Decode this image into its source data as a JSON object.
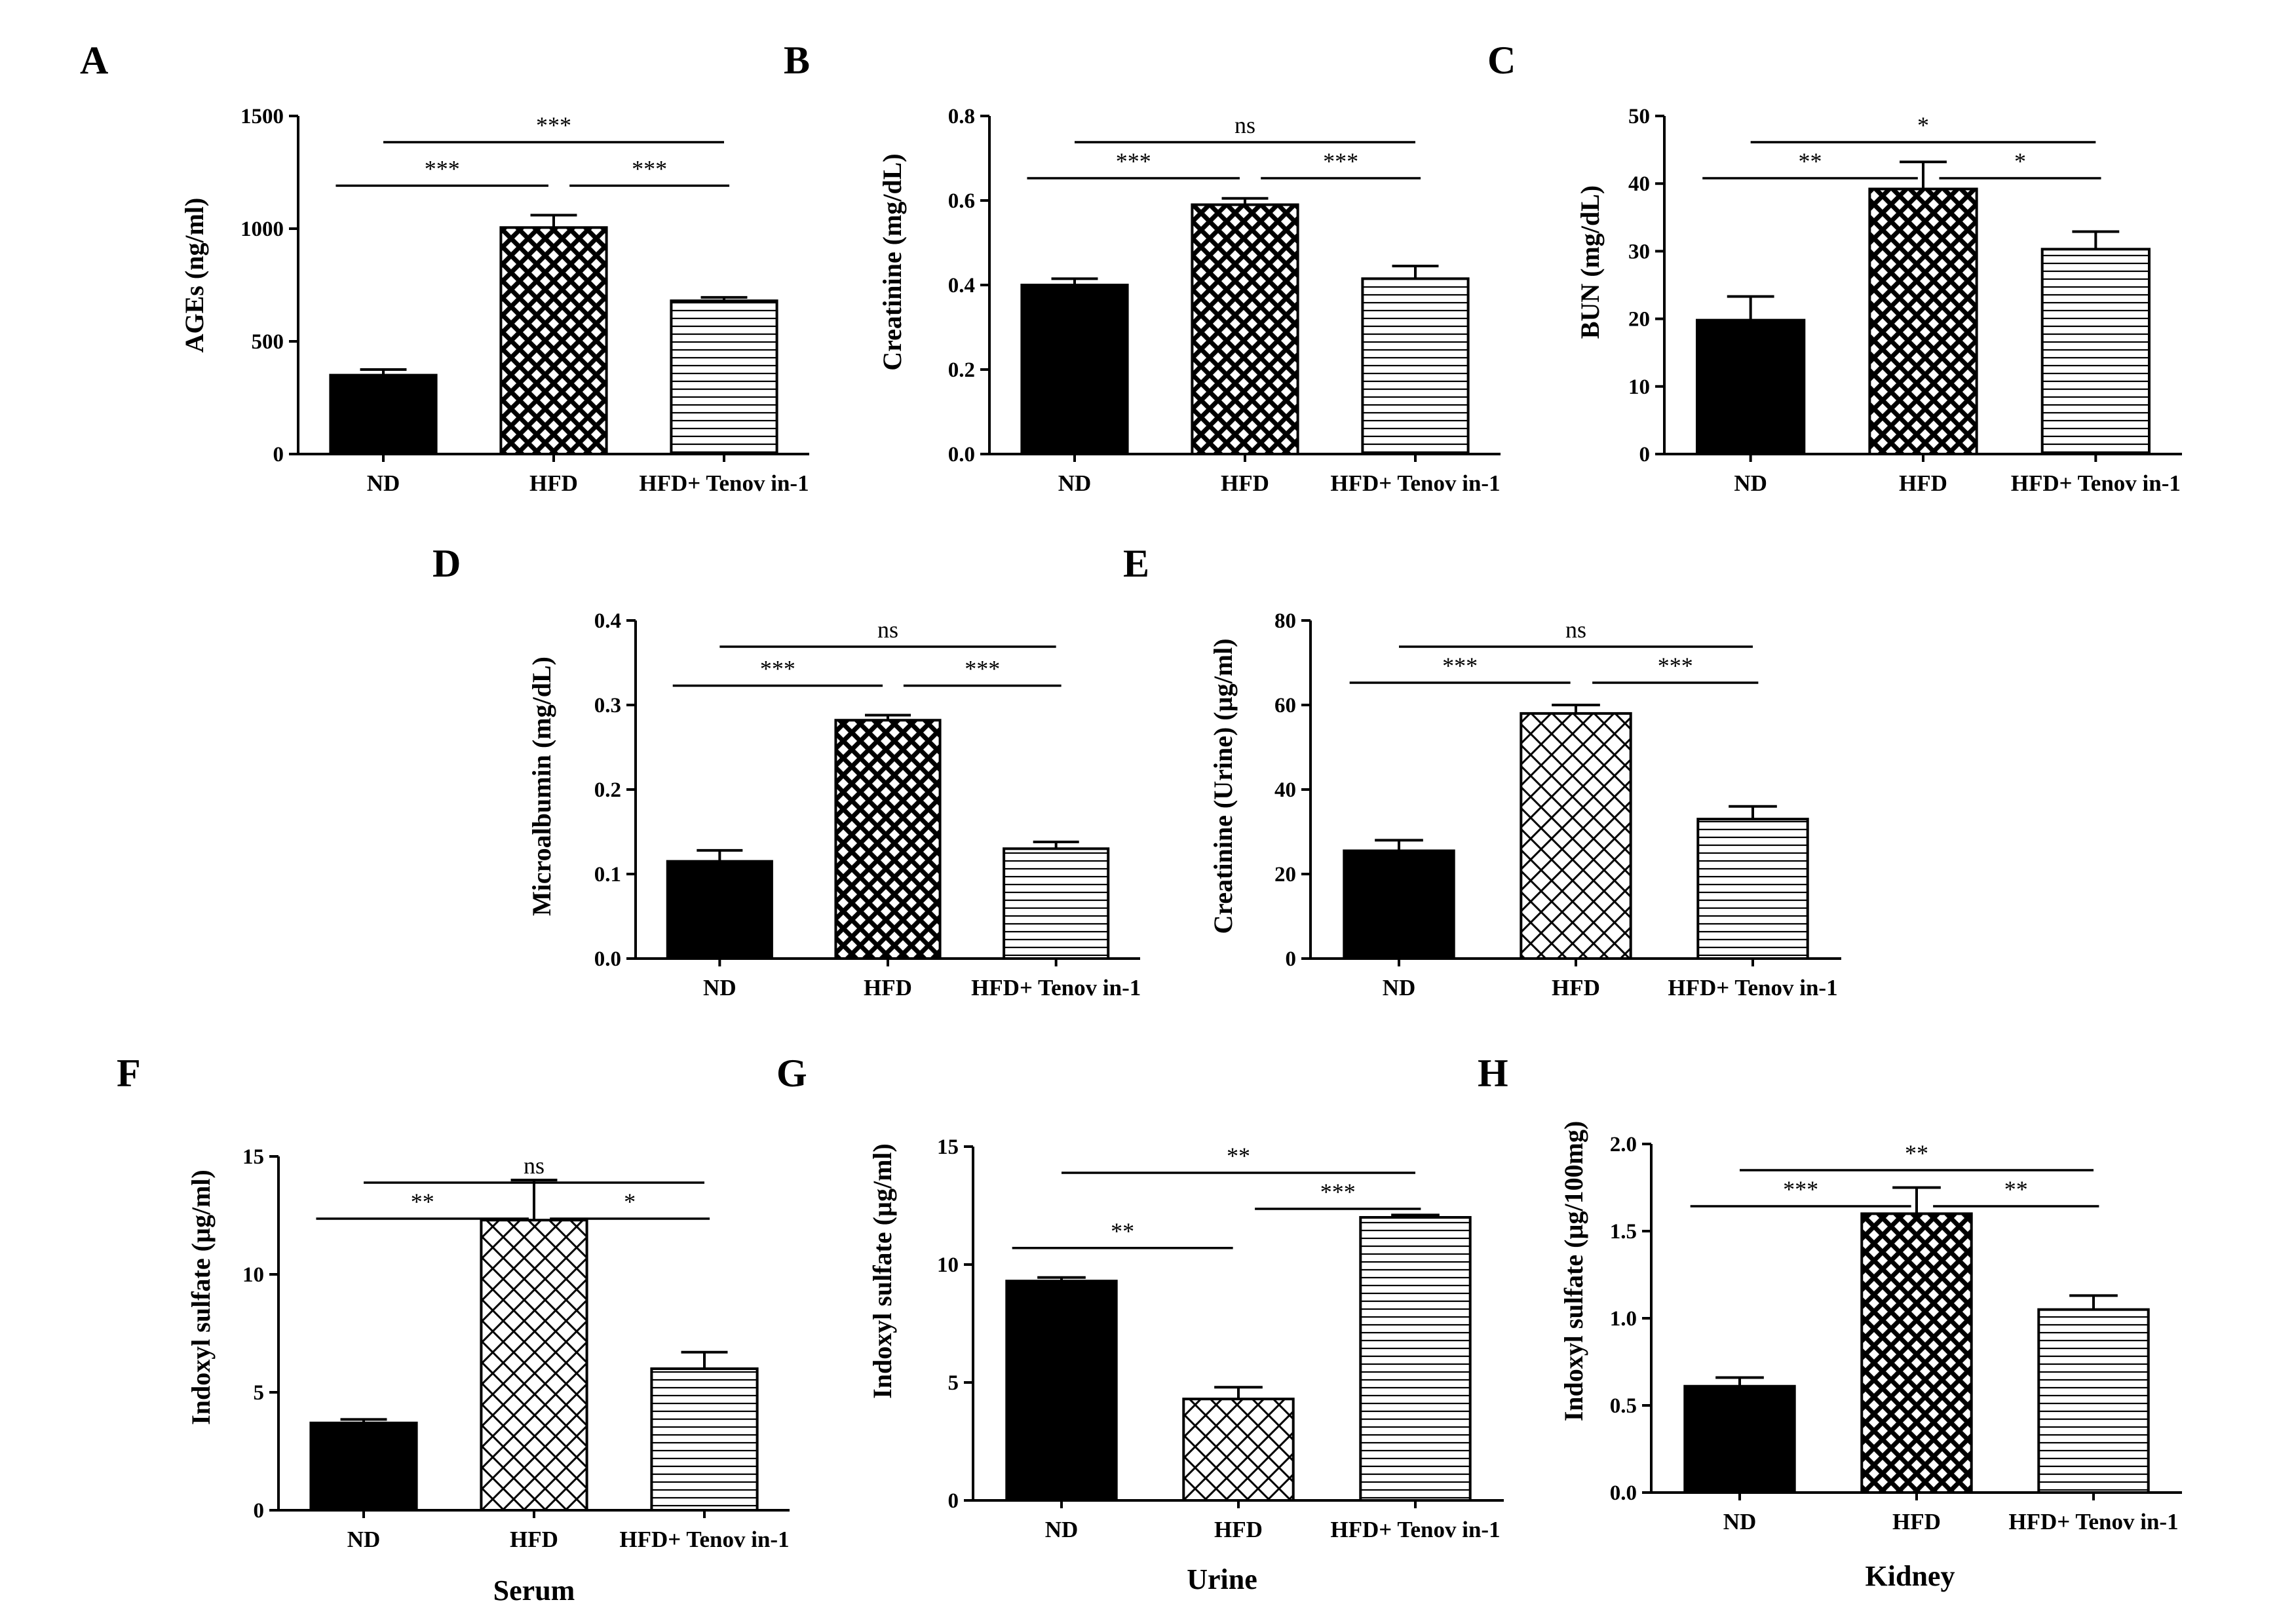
{
  "figure": {
    "description_shown": false
  },
  "chart_data": [
    {
      "panel": "A",
      "type": "bar",
      "categories": [
        "ND",
        "HFD",
        "HFD+ Tenov in-1"
      ],
      "values": [
        350,
        1005,
        680
      ],
      "errors": [
        25,
        55,
        15
      ],
      "ylabel": "AGEs (ng/ml)",
      "xlabel": "",
      "ylim": [
        0,
        1500
      ],
      "ticks": [
        0,
        500,
        1000,
        1500
      ],
      "tick_labels": [
        "0",
        "500",
        "1000",
        "1500"
      ],
      "comparisons": [
        {
          "from": 0,
          "to": 1,
          "label": "***"
        },
        {
          "from": 1,
          "to": 2,
          "label": "***"
        },
        {
          "from": 0,
          "to": 2,
          "label": "***"
        }
      ]
    },
    {
      "panel": "B",
      "type": "bar",
      "categories": [
        "ND",
        "HFD",
        "HFD+ Tenov in-1"
      ],
      "values": [
        0.4,
        0.59,
        0.415
      ],
      "errors": [
        0.015,
        0.015,
        0.03
      ],
      "ylabel": "Creatinine (mg/dL)",
      "xlabel": "",
      "ylim": [
        0,
        0.8
      ],
      "ticks": [
        0,
        0.2,
        0.4,
        0.6,
        0.8
      ],
      "tick_labels": [
        "0.0",
        "0.2",
        "0.4",
        "0.6",
        "0.8"
      ],
      "comparisons": [
        {
          "from": 0,
          "to": 1,
          "label": "***"
        },
        {
          "from": 1,
          "to": 2,
          "label": "***"
        },
        {
          "from": 0,
          "to": 2,
          "label": "ns"
        }
      ]
    },
    {
      "panel": "C",
      "type": "bar",
      "categories": [
        "ND",
        "HFD",
        "HFD+ Tenov in-1"
      ],
      "values": [
        19.8,
        39.2,
        30.3
      ],
      "errors": [
        3.5,
        4.0,
        2.6
      ],
      "ylabel": "BUN (mg/dL)",
      "xlabel": "",
      "ylim": [
        0,
        50
      ],
      "ticks": [
        0,
        10,
        20,
        30,
        40,
        50
      ],
      "tick_labels": [
        "0",
        "10",
        "20",
        "30",
        "40",
        "50"
      ],
      "comparisons": [
        {
          "from": 0,
          "to": 1,
          "label": "**"
        },
        {
          "from": 1,
          "to": 2,
          "label": "*"
        },
        {
          "from": 0,
          "to": 2,
          "label": "*"
        }
      ]
    },
    {
      "panel": "D",
      "type": "bar",
      "categories": [
        "ND",
        "HFD",
        "HFD+ Tenov in-1"
      ],
      "values": [
        0.115,
        0.282,
        0.13
      ],
      "errors": [
        0.013,
        0.006,
        0.008
      ],
      "ylabel": "Microalbumin (mg/dL)",
      "xlabel": "",
      "ylim": [
        0,
        0.4
      ],
      "ticks": [
        0,
        0.1,
        0.2,
        0.3,
        0.4
      ],
      "tick_labels": [
        "0.0",
        "0.1",
        "0.2",
        "0.3",
        "0.4"
      ],
      "comparisons": [
        {
          "from": 0,
          "to": 1,
          "label": "***"
        },
        {
          "from": 1,
          "to": 2,
          "label": "***"
        },
        {
          "from": 0,
          "to": 2,
          "label": "ns"
        }
      ]
    },
    {
      "panel": "E",
      "type": "bar",
      "categories": [
        "ND",
        "HFD",
        "HFD+ Tenov in-1"
      ],
      "values": [
        25.5,
        58.0,
        33.0
      ],
      "errors": [
        2.5,
        2.0,
        3.0
      ],
      "ylabel": "Creatinine (Urine) (µg/ml)",
      "xlabel": "",
      "ylim": [
        0,
        80
      ],
      "ticks": [
        0,
        20,
        40,
        60,
        80
      ],
      "tick_labels": [
        "0",
        "20",
        "40",
        "60",
        "80"
      ],
      "comparisons": [
        {
          "from": 0,
          "to": 1,
          "label": "***"
        },
        {
          "from": 1,
          "to": 2,
          "label": "***"
        },
        {
          "from": 0,
          "to": 2,
          "label": "ns"
        }
      ]
    },
    {
      "panel": "F",
      "type": "bar",
      "categories": [
        "ND",
        "HFD",
        "HFD+ Tenov in-1"
      ],
      "values": [
        3.7,
        12.3,
        6.0
      ],
      "errors": [
        0.15,
        1.7,
        0.7
      ],
      "ylabel": "Indoxyl sulfate (µg/ml)",
      "xlabel": "Serum",
      "ylim": [
        0,
        15
      ],
      "ticks": [
        0,
        5,
        10,
        15
      ],
      "tick_labels": [
        "0",
        "5",
        "10",
        "15"
      ],
      "comparisons": [
        {
          "from": 0,
          "to": 1,
          "label": "**"
        },
        {
          "from": 1,
          "to": 2,
          "label": "*"
        },
        {
          "from": 0,
          "to": 2,
          "label": "ns"
        }
      ]
    },
    {
      "panel": "G",
      "type": "bar",
      "categories": [
        "ND",
        "HFD",
        "HFD+ Tenov in-1"
      ],
      "values": [
        9.3,
        4.3,
        12.0
      ],
      "errors": [
        0.15,
        0.5,
        0.1
      ],
      "ylabel": "Indoxyl sulfate (µg/ml)",
      "xlabel": "Urine",
      "ylim": [
        0,
        15
      ],
      "ticks": [
        0,
        5,
        10,
        15
      ],
      "tick_labels": [
        "0",
        "5",
        "10",
        "15"
      ],
      "comparisons": [
        {
          "from": 0,
          "to": 1,
          "label": "**"
        },
        {
          "from": 1,
          "to": 2,
          "label": "***"
        },
        {
          "from": 0,
          "to": 2,
          "label": "**"
        }
      ]
    },
    {
      "panel": "H",
      "type": "bar",
      "categories": [
        "ND",
        "HFD",
        "HFD+ Tenov in-1"
      ],
      "values": [
        0.61,
        1.6,
        1.05
      ],
      "errors": [
        0.05,
        0.15,
        0.08
      ],
      "ylabel": "Indoxyl sulfate (µg/100mg)",
      "xlabel": "Kidney",
      "ylim": [
        0,
        2.0
      ],
      "ticks": [
        0,
        0.5,
        1.0,
        1.5,
        2.0
      ],
      "tick_labels": [
        "0.0",
        "0.5",
        "1.0",
        "1.5",
        "2.0"
      ],
      "comparisons": [
        {
          "from": 0,
          "to": 1,
          "label": "***"
        },
        {
          "from": 1,
          "to": 2,
          "label": "**"
        },
        {
          "from": 0,
          "to": 2,
          "label": "**"
        }
      ]
    }
  ]
}
